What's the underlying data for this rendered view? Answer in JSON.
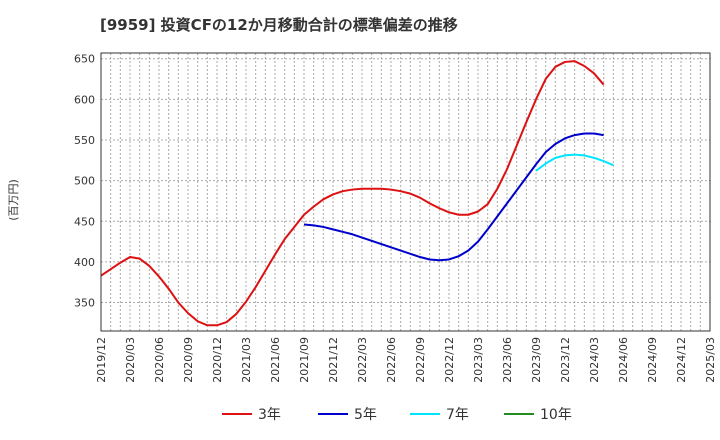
{
  "chart_data": {
    "type": "line",
    "title": "[9959]  投資CFの12か月移動合計の標準偏差の推移",
    "ylabel": "(百万円)",
    "xlabel": "",
    "ylim": [
      315,
      657
    ],
    "yticks": [
      350,
      400,
      450,
      500,
      550,
      600,
      650
    ],
    "x_tick_labels": [
      "2019/12",
      "2020/03",
      "2020/06",
      "2020/09",
      "2020/12",
      "2021/03",
      "2021/06",
      "2021/09",
      "2021/12",
      "2022/03",
      "2022/06",
      "2022/09",
      "2022/12",
      "2023/03",
      "2023/06",
      "2023/09",
      "2023/12",
      "2024/03",
      "2024/06",
      "2024/09",
      "2024/12",
      "2025/03"
    ],
    "grid": true,
    "legend_position": "bottom",
    "series": [
      {
        "name": "3年",
        "color": "#dd1111",
        "start_index": 0,
        "values": [
          383,
          391,
          399,
          406,
          404,
          395,
          382,
          367,
          350,
          337,
          327,
          322,
          322,
          326,
          336,
          351,
          369,
          389,
          409,
          428,
          443,
          458,
          468,
          477,
          483,
          487,
          489,
          490,
          490,
          490,
          489,
          487,
          484,
          479,
          472,
          466,
          461,
          458,
          458,
          462,
          471,
          490,
          514,
          543,
          572,
          600,
          625,
          640,
          646,
          647,
          641,
          632,
          618
        ]
      },
      {
        "name": "5年",
        "color": "#0000cc",
        "start_index": 21,
        "values": [
          446,
          445,
          443,
          440,
          437,
          434,
          430,
          426,
          422,
          418,
          414,
          410,
          406,
          403,
          402,
          403,
          407,
          414,
          425,
          440,
          456,
          472,
          488,
          504,
          520,
          535,
          545,
          552,
          556,
          558,
          558,
          556
        ]
      },
      {
        "name": "7年",
        "color": "#00e5ff",
        "start_index": 45,
        "values": [
          512,
          521,
          528,
          531,
          532,
          531,
          528,
          524,
          519
        ]
      },
      {
        "name": "10年",
        "color": "#228b22",
        "start_index": 0,
        "values": []
      }
    ]
  }
}
